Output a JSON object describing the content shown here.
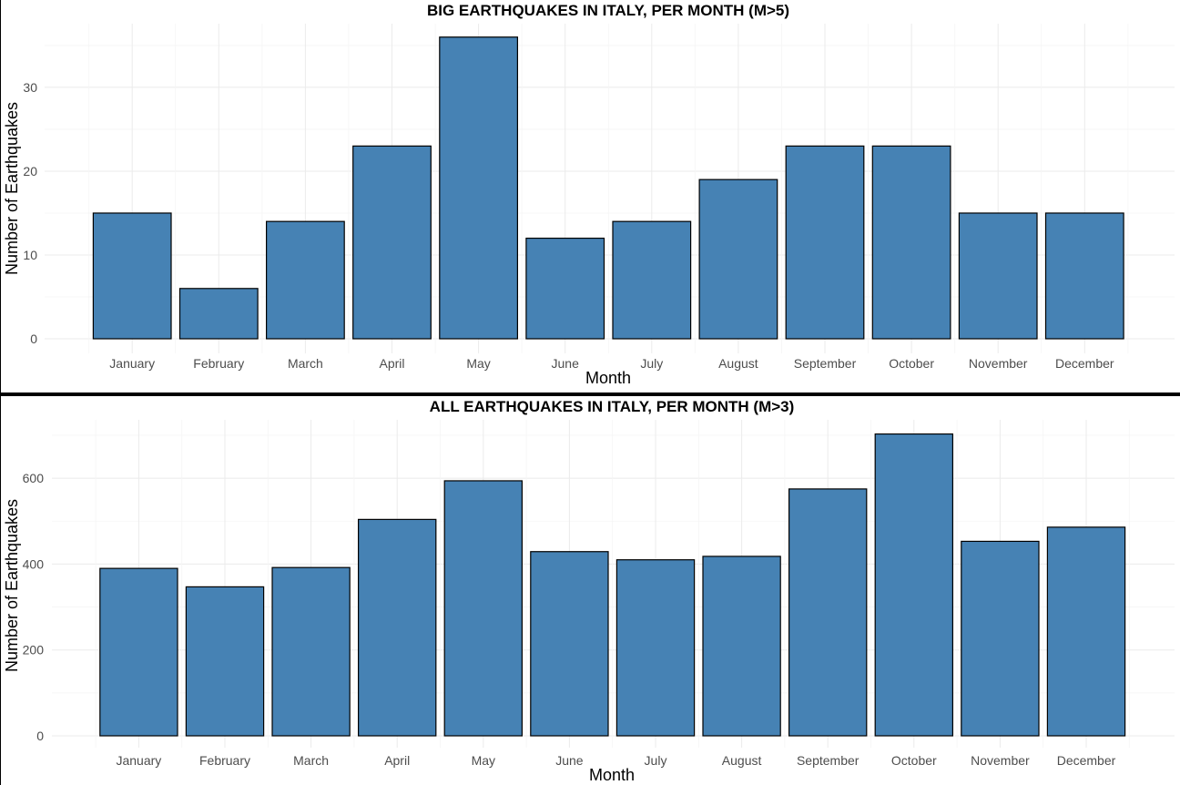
{
  "chart_data": [
    {
      "type": "bar",
      "title": "BIG EARTHQUAKES IN ITALY, PER MONTH (M>5)",
      "xlabel": "Month",
      "ylabel": "Number of Earthquakes",
      "categories": [
        "January",
        "February",
        "March",
        "April",
        "May",
        "June",
        "July",
        "August",
        "September",
        "October",
        "November",
        "December"
      ],
      "values": [
        15,
        6,
        14,
        23,
        36,
        12,
        14,
        19,
        23,
        23,
        15,
        15
      ],
      "yticks": [
        0,
        10,
        20,
        30
      ],
      "ylim": [
        0,
        37.6
      ],
      "grid": true,
      "bar_color": "#4682b4"
    },
    {
      "type": "bar",
      "title": "ALL EARTHQUAKES IN ITALY, PER MONTH (M>3)",
      "xlabel": "Month",
      "ylabel": "Number of Earthquakes",
      "categories": [
        "January",
        "February",
        "March",
        "April",
        "May",
        "June",
        "July",
        "August",
        "September",
        "October",
        "November",
        "December"
      ],
      "values": [
        390,
        347,
        392,
        504,
        594,
        429,
        410,
        418,
        575,
        703,
        453,
        486
      ],
      "yticks": [
        0,
        200,
        400,
        600
      ],
      "ylim": [
        0,
        736
      ],
      "grid": true,
      "bar_color": "#4682b4"
    }
  ]
}
